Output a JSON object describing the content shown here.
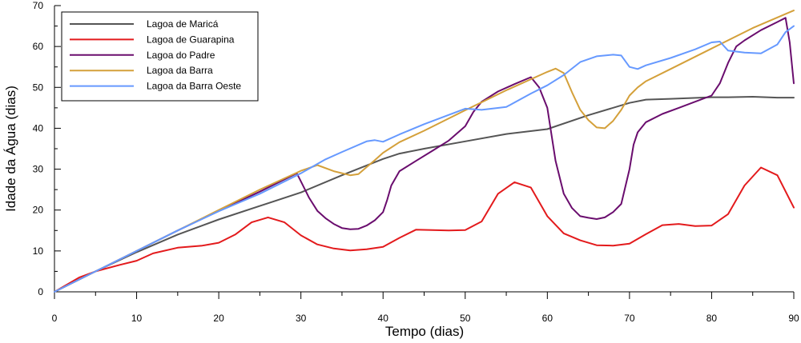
{
  "chart_data": {
    "type": "line",
    "title": "",
    "xlabel": "Tempo (dias)",
    "ylabel": "Idade da Água (dias)",
    "xlim": [
      0,
      90
    ],
    "ylim": [
      0,
      70
    ],
    "xticks": [
      0,
      10,
      20,
      30,
      40,
      50,
      60,
      70,
      80,
      90
    ],
    "yticks": [
      0,
      10,
      20,
      30,
      40,
      50,
      60,
      70
    ],
    "grid": false,
    "legend_position": "top-left",
    "series": [
      {
        "name": "Lagoa de Maricá",
        "color": "#555555",
        "x": [
          0,
          5,
          10,
          15,
          20,
          25,
          30,
          35,
          40,
          42,
          45,
          50,
          55,
          60,
          65,
          70,
          72,
          75,
          80,
          82,
          85,
          88,
          90
        ],
        "y": [
          0,
          5,
          9.7,
          14,
          17.7,
          21,
          24.3,
          28.5,
          32.5,
          33.8,
          35,
          36.8,
          38.6,
          39.8,
          43.2,
          46.2,
          47,
          47.2,
          47.6,
          47.6,
          47.7,
          47.5,
          47.5
        ]
      },
      {
        "name": "Lagoa de Guarapina",
        "color": "#e31a1c",
        "x": [
          0,
          3,
          5,
          8,
          10,
          12,
          15,
          18,
          20,
          22,
          24,
          26,
          28,
          30,
          32,
          34,
          36,
          38,
          40,
          42,
          44,
          46,
          48,
          50,
          52,
          54,
          56,
          58,
          60,
          62,
          64,
          66,
          68,
          70,
          72,
          74,
          76,
          78,
          80,
          82,
          84,
          86,
          88,
          90
        ],
        "y": [
          0,
          3.5,
          5,
          6.6,
          7.6,
          9.4,
          10.8,
          11.3,
          12,
          14,
          17,
          18.2,
          17,
          13.8,
          11.6,
          10.6,
          10.1,
          10.4,
          11,
          13.2,
          15.2,
          15.1,
          15,
          15.1,
          17.2,
          24,
          26.8,
          25.5,
          18.5,
          14.3,
          12.6,
          11.4,
          11.3,
          11.8,
          14.1,
          16.3,
          16.6,
          16.1,
          16.2,
          19,
          26,
          30.4,
          28.5,
          20.6
        ]
      },
      {
        "name": "Lagoa do Padre",
        "color": "#6a0d6e",
        "x": [
          0,
          5,
          10,
          15,
          20,
          25,
          29.5,
          30,
          31,
          32,
          33,
          34,
          35,
          36,
          37,
          38,
          39,
          40,
          40.5,
          41,
          42,
          44,
          46,
          48,
          50,
          51,
          52,
          54,
          56,
          58,
          59,
          60,
          61,
          62,
          63,
          64,
          65,
          66,
          67,
          68,
          69,
          70,
          70.5,
          71,
          72,
          74,
          76,
          78,
          80,
          81,
          82,
          83,
          84,
          86,
          88,
          89,
          89.5,
          90
        ],
        "y": [
          0,
          5,
          10,
          15,
          19.8,
          24.5,
          29,
          27,
          23,
          19.8,
          18,
          16.6,
          15.6,
          15.3,
          15.4,
          16.2,
          17.5,
          19.5,
          22.5,
          26,
          29.5,
          32,
          34.5,
          37,
          40.5,
          44,
          46.5,
          49,
          50.8,
          52.5,
          50,
          45,
          32,
          24,
          20.5,
          18.5,
          18.1,
          17.8,
          18.2,
          19.5,
          21.5,
          30,
          36,
          39,
          41.5,
          43.5,
          45,
          46.5,
          48,
          51,
          56,
          60,
          61.5,
          64,
          66,
          67,
          61,
          51
        ]
      },
      {
        "name": "Lagoa da Barra",
        "color": "#d4a03a",
        "x": [
          0,
          5,
          10,
          15,
          20,
          25,
          30,
          32,
          34,
          36,
          37,
          38,
          39,
          40,
          42,
          45,
          50,
          55,
          60,
          61,
          62,
          63,
          64,
          65,
          66,
          67,
          68,
          69,
          70,
          71,
          72,
          75,
          80,
          85,
          90
        ],
        "y": [
          0,
          5,
          10,
          15,
          20,
          25,
          29.6,
          31,
          29.5,
          28.5,
          28.8,
          30.5,
          32.2,
          34,
          36.6,
          39.4,
          44.4,
          49.3,
          53.8,
          54.6,
          53.5,
          48.8,
          44.5,
          42,
          40.2,
          40,
          41.8,
          44.5,
          48,
          50,
          51.5,
          54.5,
          59.5,
          64.5,
          68.8
        ]
      },
      {
        "name": "Lagoa da Barra Oeste",
        "color": "#6699ff",
        "x": [
          0,
          5,
          10,
          15,
          20,
          25,
          30,
          33,
          35,
          38,
          39,
          40,
          42,
          45,
          50,
          52,
          55,
          58,
          60,
          62,
          64,
          66,
          68,
          69,
          70,
          71,
          72,
          75,
          78,
          80,
          81,
          82,
          84,
          86,
          88,
          89,
          90
        ],
        "y": [
          0,
          5,
          10,
          15,
          19.7,
          24,
          29,
          32.4,
          34.2,
          36.8,
          37.1,
          36.7,
          38.5,
          41,
          44.8,
          44.5,
          45.2,
          48.5,
          50.5,
          53,
          56.2,
          57.6,
          58,
          57.8,
          55,
          54.5,
          55.4,
          57.2,
          59.3,
          61,
          61.2,
          59,
          58.5,
          58.3,
          60.5,
          63.5,
          65
        ]
      }
    ]
  }
}
